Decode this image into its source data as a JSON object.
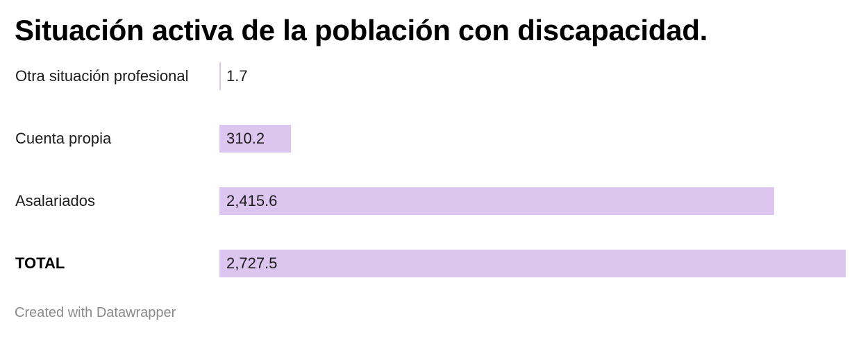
{
  "title": "Situación activa de la población con discapacidad.",
  "footer": "Created with Datawrapper",
  "colors": {
    "bar": "#dcc5ee",
    "text": "#1d1d1d"
  },
  "chart_data": {
    "type": "bar",
    "orientation": "horizontal",
    "title": "Situación activa de la población con discapacidad.",
    "xlim": [
      0,
      2727.5
    ],
    "grid": false,
    "categories": [
      "Otra situación profesional",
      "Cuenta propia",
      "Asalariados",
      "TOTAL"
    ],
    "values": [
      1.7,
      310.2,
      2415.6,
      2727.5
    ],
    "value_labels": [
      "1.7",
      "310.2",
      "2,415.6",
      "2,727.5"
    ],
    "bold_categories": [
      "TOTAL"
    ]
  }
}
